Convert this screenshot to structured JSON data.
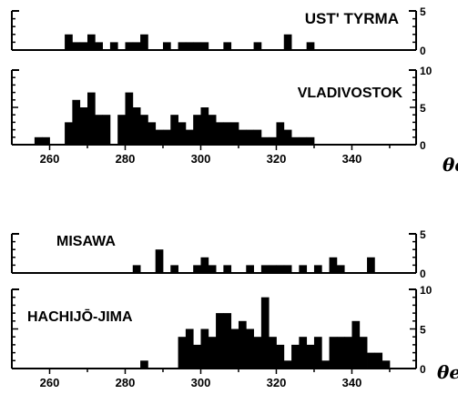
{
  "chart_data": [
    {
      "type": "bar",
      "name": "UST' TYRMA",
      "xlabel": "θe",
      "ylim": [
        0,
        5
      ],
      "yticks": [
        "0",
        "5"
      ],
      "bin_width": 2,
      "bins": [
        {
          "x": 264,
          "count": 2
        },
        {
          "x": 266,
          "count": 1
        },
        {
          "x": 268,
          "count": 1
        },
        {
          "x": 270,
          "count": 2
        },
        {
          "x": 272,
          "count": 1
        },
        {
          "x": 276,
          "count": 1
        },
        {
          "x": 280,
          "count": 1
        },
        {
          "x": 282,
          "count": 1
        },
        {
          "x": 284,
          "count": 2
        },
        {
          "x": 290,
          "count": 1
        },
        {
          "x": 294,
          "count": 1
        },
        {
          "x": 296,
          "count": 1
        },
        {
          "x": 298,
          "count": 1
        },
        {
          "x": 300,
          "count": 1
        },
        {
          "x": 306,
          "count": 1
        },
        {
          "x": 314,
          "count": 1
        },
        {
          "x": 322,
          "count": 2
        },
        {
          "x": 328,
          "count": 1
        }
      ]
    },
    {
      "type": "bar",
      "name": "VLADIVOSTOK",
      "xlabel": "θe",
      "ylim": [
        0,
        10
      ],
      "yticks": [
        "0",
        "5",
        "10"
      ],
      "xticks": [
        260,
        280,
        300,
        320,
        340
      ],
      "bin_width": 2,
      "bins": [
        {
          "x": 256,
          "count": 1
        },
        {
          "x": 258,
          "count": 1
        },
        {
          "x": 264,
          "count": 3
        },
        {
          "x": 266,
          "count": 6
        },
        {
          "x": 268,
          "count": 5
        },
        {
          "x": 270,
          "count": 7
        },
        {
          "x": 272,
          "count": 4
        },
        {
          "x": 274,
          "count": 4
        },
        {
          "x": 278,
          "count": 4
        },
        {
          "x": 280,
          "count": 7
        },
        {
          "x": 282,
          "count": 5
        },
        {
          "x": 284,
          "count": 4
        },
        {
          "x": 286,
          "count": 3
        },
        {
          "x": 288,
          "count": 2
        },
        {
          "x": 290,
          "count": 2
        },
        {
          "x": 292,
          "count": 4
        },
        {
          "x": 294,
          "count": 3
        },
        {
          "x": 296,
          "count": 2
        },
        {
          "x": 298,
          "count": 4
        },
        {
          "x": 300,
          "count": 5
        },
        {
          "x": 302,
          "count": 4
        },
        {
          "x": 304,
          "count": 3
        },
        {
          "x": 306,
          "count": 3
        },
        {
          "x": 308,
          "count": 3
        },
        {
          "x": 310,
          "count": 2
        },
        {
          "x": 312,
          "count": 2
        },
        {
          "x": 314,
          "count": 2
        },
        {
          "x": 316,
          "count": 1
        },
        {
          "x": 318,
          "count": 1
        },
        {
          "x": 320,
          "count": 3
        },
        {
          "x": 322,
          "count": 2
        },
        {
          "x": 324,
          "count": 1
        },
        {
          "x": 326,
          "count": 1
        },
        {
          "x": 328,
          "count": 1
        }
      ]
    },
    {
      "type": "bar",
      "name": "MISAWA",
      "xlabel": "θe",
      "ylim": [
        0,
        5
      ],
      "yticks": [
        "0",
        "5"
      ],
      "bin_width": 2,
      "bins": [
        {
          "x": 282,
          "count": 1
        },
        {
          "x": 288,
          "count": 3
        },
        {
          "x": 292,
          "count": 1
        },
        {
          "x": 298,
          "count": 1
        },
        {
          "x": 300,
          "count": 2
        },
        {
          "x": 302,
          "count": 1
        },
        {
          "x": 306,
          "count": 1
        },
        {
          "x": 312,
          "count": 1
        },
        {
          "x": 316,
          "count": 1
        },
        {
          "x": 318,
          "count": 1
        },
        {
          "x": 320,
          "count": 1
        },
        {
          "x": 322,
          "count": 1
        },
        {
          "x": 326,
          "count": 1
        },
        {
          "x": 330,
          "count": 1
        },
        {
          "x": 334,
          "count": 2
        },
        {
          "x": 336,
          "count": 1
        },
        {
          "x": 344,
          "count": 2
        }
      ]
    },
    {
      "type": "bar",
      "name": "HACHIJŌ-JIMA",
      "xlabel": "θe",
      "ylim": [
        0,
        10
      ],
      "yticks": [
        "0",
        "5",
        "10"
      ],
      "xticks": [
        260,
        280,
        300,
        320,
        340
      ],
      "bin_width": 2,
      "bins": [
        {
          "x": 284,
          "count": 1
        },
        {
          "x": 294,
          "count": 4
        },
        {
          "x": 296,
          "count": 5
        },
        {
          "x": 298,
          "count": 3
        },
        {
          "x": 300,
          "count": 5
        },
        {
          "x": 302,
          "count": 4
        },
        {
          "x": 304,
          "count": 7
        },
        {
          "x": 306,
          "count": 7
        },
        {
          "x": 308,
          "count": 5
        },
        {
          "x": 310,
          "count": 6
        },
        {
          "x": 312,
          "count": 5
        },
        {
          "x": 314,
          "count": 4
        },
        {
          "x": 316,
          "count": 9
        },
        {
          "x": 318,
          "count": 4
        },
        {
          "x": 320,
          "count": 3
        },
        {
          "x": 322,
          "count": 1
        },
        {
          "x": 324,
          "count": 3
        },
        {
          "x": 326,
          "count": 4
        },
        {
          "x": 328,
          "count": 3
        },
        {
          "x": 330,
          "count": 4
        },
        {
          "x": 332,
          "count": 1
        },
        {
          "x": 334,
          "count": 4
        },
        {
          "x": 336,
          "count": 4
        },
        {
          "x": 338,
          "count": 4
        },
        {
          "x": 340,
          "count": 6
        },
        {
          "x": 342,
          "count": 4
        },
        {
          "x": 344,
          "count": 2
        },
        {
          "x": 346,
          "count": 2
        },
        {
          "x": 348,
          "count": 1
        }
      ]
    }
  ],
  "colors": {
    "bars": "#000000",
    "axes": "#000000",
    "background": "#ffffff"
  }
}
